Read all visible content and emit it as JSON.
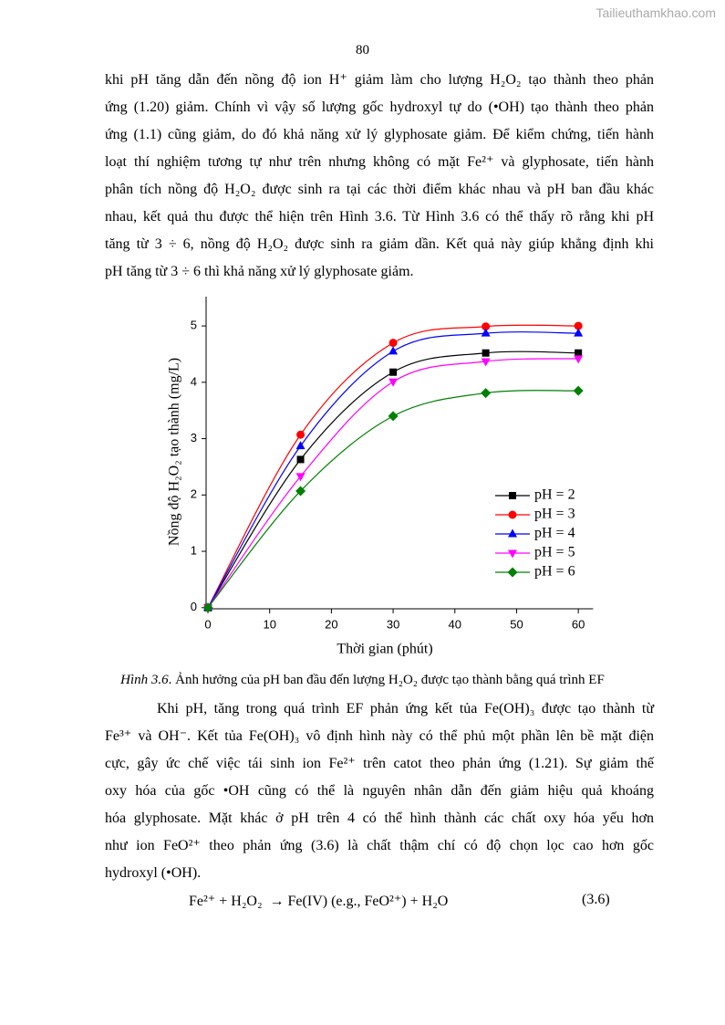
{
  "watermark": "Tailieuthamkhao.com",
  "page_number": "80",
  "paragraphs": [
    {
      "lines": [
        "khi pH tăng dẫn đến nồng độ ion H⁺ giảm làm cho lượng H₂O₂ tạo thành theo phản",
        "ứng (1.20) giảm. Chính vì vậy số lượng gốc hydroxyl tự do (•OH) tạo thành theo phản",
        "ứng (1.1) cũng giảm, do đó khả năng xử lý glyphosate giảm. Để kiểm chứng, tiến hành",
        "loạt thí nghiệm tương tự như trên nhưng không có mặt Fe²⁺ và glyphosate, tiến hành",
        "phân tích nồng độ H₂O₂ được sinh ra tại các thời điểm khác nhau và pH ban đầu khác",
        "nhau, kết quả thu được thể hiện trên Hình 3.6. Từ Hình 3.6 có thể thấy rõ rằng khi pH",
        "tăng từ 3 ÷ 6, nồng độ H₂O₂ được sinh ra giảm dần. Kết quả này giúp khẳng định khi",
        "pH tăng từ 3 ÷ 6 thì khả năng xử lý glyphosate giảm."
      ]
    },
    {
      "lines": [
        "Khi pH, tăng trong quá trình EF phản ứng kết tủa Fe(OH)₃ được tạo thành từ",
        "Fe³⁺ và OH⁻. Kết tủa Fe(OH)₃ vô định hình này có thể phủ một phần lên bề mặt điện",
        "cực, gây ức chế việc tái sinh ion Fe²⁺ trên catot theo phản ứng (1.21). Sự giảm thế",
        "oxy hóa của gốc •OH cũng có thể là nguyên nhân dẫn đến giảm hiệu quả khoáng",
        "hóa glyphosate. Mặt khác ở pH trên 4 có thể hình thành các chất oxy hóa yếu hơn",
        "như ion FeO²⁺ theo phản ứng (3.6) là chất thậm chí có độ chọn lọc cao hơn gốc",
        "hydroxyl (•OH)."
      ]
    }
  ],
  "chart_data": {
    "type": "line",
    "xlabel": "Thời gian (phút)",
    "ylabel": "Nồng độ H₂O₂ tạo thành (mg/L)",
    "x": [
      0,
      15,
      30,
      45,
      60
    ],
    "xlim": [
      -0.3,
      62.4
    ],
    "xticks": [
      0,
      10,
      20,
      30,
      40,
      50,
      60
    ],
    "ylim": [
      -0.02,
      5.52
    ],
    "yticks": [
      0,
      1,
      2,
      3,
      4,
      5
    ],
    "legend": "lower right",
    "smooth": true,
    "series": [
      {
        "name": "pH = 2",
        "color": "#000000",
        "marker": "square",
        "values": [
          0,
          2.63,
          4.18,
          4.52,
          4.52
        ]
      },
      {
        "name": "pH = 3",
        "color": "#ff0000",
        "marker": "circle",
        "values": [
          0,
          3.07,
          4.7,
          4.99,
          5.0
        ]
      },
      {
        "name": "pH = 4",
        "color": "#0000ff",
        "marker": "triangle-up",
        "values": [
          0,
          2.87,
          4.55,
          4.87,
          4.87
        ]
      },
      {
        "name": "pH = 5",
        "color": "#ff00ff",
        "marker": "triangle-down",
        "values": [
          0,
          2.33,
          4.01,
          4.37,
          4.42
        ]
      },
      {
        "name": "pH = 6",
        "color": "#008000",
        "marker": "diamond",
        "values": [
          0,
          2.07,
          3.4,
          3.81,
          3.85
        ]
      }
    ]
  },
  "caption": {
    "label": "Hình 3.6",
    "text": ". Ảnh hưởng của pH ban đầu đến lượng H₂O₂ được tạo thành bằng quá trình EF"
  },
  "equation": {
    "text": "Fe²⁺ + H₂O₂  → Fe(IV) (e.g., FeO²⁺) + H₂O",
    "number": "(3.6)"
  }
}
